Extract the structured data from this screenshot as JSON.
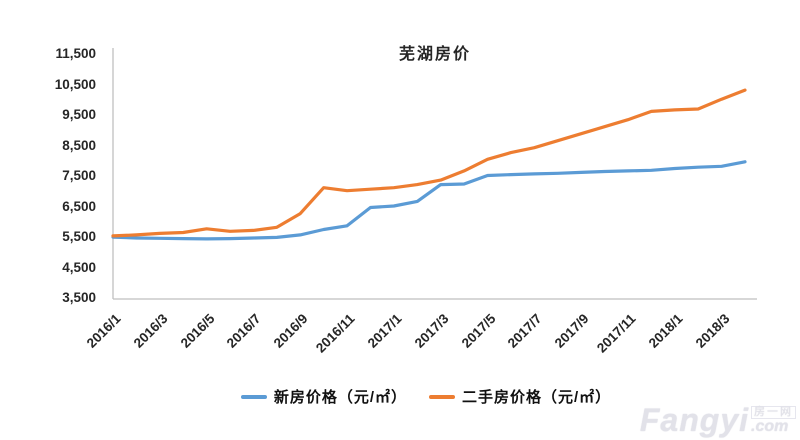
{
  "watermark": {
    "brand": "Fangyi",
    "suffix": ".com",
    "cjk": "房一网"
  },
  "chart_data": {
    "type": "line",
    "title": "芜湖房价",
    "xlabel": "",
    "ylabel": "",
    "grid": false,
    "legend_position": "bottom",
    "axis_color": "#BFBFBF",
    "text_color": "#262626",
    "ylim": [
      3500,
      11500
    ],
    "y_ticks": [
      {
        "label": "11,500",
        "value": 11500
      },
      {
        "label": "10,500",
        "value": 10500
      },
      {
        "label": "9,500",
        "value": 9500
      },
      {
        "label": "8,500",
        "value": 8500
      },
      {
        "label": "7,500",
        "value": 7500
      },
      {
        "label": "6,500",
        "value": 6500
      },
      {
        "label": "5,500",
        "value": 5500
      },
      {
        "label": "4,500",
        "value": 4500
      },
      {
        "label": "3,500",
        "value": 3500
      }
    ],
    "x": [
      "2016/1",
      "2016/2",
      "2016/3",
      "2016/4",
      "2016/5",
      "2016/6",
      "2016/7",
      "2016/8",
      "2016/9",
      "2016/10",
      "2016/11",
      "2016/12",
      "2017/1",
      "2017/2",
      "2017/3",
      "2017/4",
      "2017/5",
      "2017/6",
      "2017/7",
      "2017/8",
      "2017/9",
      "2017/10",
      "2017/11",
      "2017/12",
      "2018/1",
      "2018/2",
      "2018/3",
      "2018/4"
    ],
    "x_tick_labels": [
      "2016/1",
      "2016/3",
      "2016/5",
      "2016/7",
      "2016/9",
      "2016/11",
      "2017/1",
      "2017/3",
      "2017/5",
      "2017/7",
      "2017/9",
      "2017/11",
      "2018/1",
      "2018/3"
    ],
    "series": [
      {
        "name": "新房价格（元/㎡）",
        "color": "#5B9BD5",
        "values": [
          5530,
          5500,
          5490,
          5480,
          5470,
          5480,
          5500,
          5520,
          5600,
          5780,
          5900,
          6500,
          6550,
          6700,
          7250,
          7270,
          7550,
          7580,
          7600,
          7620,
          7650,
          7680,
          7700,
          7720,
          7780,
          7820,
          7850,
          8000
        ]
      },
      {
        "name": "二手房价格（元/㎡）",
        "color": "#ED7D31",
        "values": [
          5570,
          5600,
          5650,
          5680,
          5800,
          5720,
          5750,
          5850,
          6300,
          7150,
          7050,
          7100,
          7150,
          7250,
          7400,
          7700,
          8080,
          8300,
          8460,
          8690,
          8920,
          9150,
          9380,
          9650,
          9700,
          9730,
          10050,
          10350
        ]
      }
    ]
  }
}
